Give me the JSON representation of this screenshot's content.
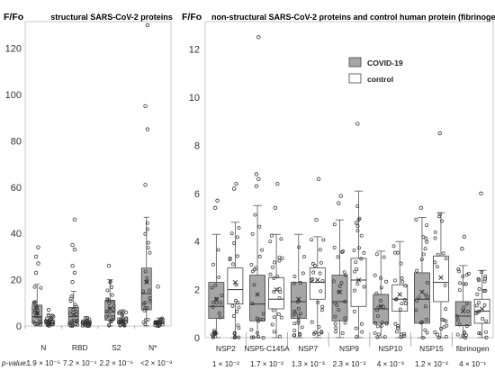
{
  "chart_data": [
    {
      "type": "box",
      "title": "structural SARS-CoV-2 proteins",
      "ylabel": "F/Fo",
      "ylim": [
        0,
        130
      ],
      "yticks": [
        0,
        20,
        40,
        60,
        80,
        100,
        120
      ],
      "p_value_label": "p-value:",
      "groups": [
        {
          "name": "N",
          "p_value": "1.9 × 10⁻⁵",
          "covid": {
            "whisker_low": 0,
            "q1": 1.5,
            "median": 4,
            "q3": 9,
            "whisker_high": 18,
            "mean": 5.5,
            "outliers": [
              23,
              27,
              30,
              34
            ]
          },
          "control": {
            "whisker_low": 0,
            "q1": 0.8,
            "median": 1.5,
            "q3": 2.5,
            "whisker_high": 5,
            "mean": 1.8,
            "outliers": [
              7
            ]
          }
        },
        {
          "name": "RBD",
          "p_value": "7.2 × 10⁻⁴",
          "covid": {
            "whisker_low": 0,
            "q1": 1.5,
            "median": 4,
            "q3": 8,
            "whisker_high": 15,
            "mean": 5,
            "outliers": [
              19,
              23,
              26,
              33,
              35,
              46
            ]
          },
          "control": {
            "whisker_low": 0,
            "q1": 0.8,
            "median": 1.3,
            "q3": 2.2,
            "whisker_high": 4,
            "mean": 1.5,
            "outliers": []
          }
        },
        {
          "name": "S2",
          "p_value": "2.2 × 10⁻⁶",
          "covid": {
            "whisker_low": 0,
            "q1": 2.5,
            "median": 6,
            "q3": 11,
            "whisker_high": 20,
            "mean": 7.5,
            "outliers": [
              26
            ]
          },
          "control": {
            "whisker_low": 0,
            "q1": 1.2,
            "median": 2,
            "q3": 3.5,
            "whisker_high": 7,
            "mean": 2.4,
            "outliers": []
          }
        },
        {
          "name": "N*",
          "p_value": "<2 × 10⁻⁹",
          "covid": {
            "whisker_low": 0,
            "q1": 7,
            "median": 14,
            "q3": 25,
            "whisker_high": 47,
            "mean": 19,
            "outliers": [
              61,
              85,
              95,
              130
            ]
          },
          "control": {
            "whisker_low": 0,
            "q1": 1,
            "median": 1.5,
            "q3": 2.2,
            "whisker_high": 3.5,
            "mean": 1.7,
            "outliers": [
              17
            ]
          }
        }
      ]
    },
    {
      "type": "box",
      "title": "non-structural SARS-CoV-2 proteins and control  human protein (fibrinogen)",
      "ylabel": "F/Fo",
      "ylim": [
        0,
        13
      ],
      "yticks": [
        0,
        2,
        4,
        6,
        8,
        10,
        12
      ],
      "legend": [
        {
          "name": "COVID-19",
          "color": "#a6a6a6"
        },
        {
          "name": "control",
          "color": "#ffffff"
        }
      ],
      "groups": [
        {
          "name": "NSP2",
          "p_value": "1 × 10⁻²",
          "covid": {
            "whisker_low": 0,
            "q1": 0.8,
            "median": 1.3,
            "q3": 2.3,
            "whisker_high": 4.3,
            "mean": 1.6,
            "outliers": [
              5.4,
              5.7
            ]
          },
          "control": {
            "whisker_low": 0,
            "q1": 1.4,
            "median": 2,
            "q3": 2.9,
            "whisker_high": 4.8,
            "mean": 2.3,
            "outliers": [
              6.2,
              6.4
            ]
          }
        },
        {
          "name": "NSP5-C145A",
          "p_value": "1.7 × 10⁻²",
          "covid": {
            "whisker_low": 0,
            "q1": 0.7,
            "median": 1.4,
            "q3": 2.6,
            "whisker_high": 5.5,
            "mean": 1.8,
            "outliers": [
              6.3,
              6.6,
              6.8,
              12.5
            ]
          },
          "control": {
            "whisker_low": 0,
            "q1": 1.2,
            "median": 1.6,
            "q3": 2.5,
            "whisker_high": 4.3,
            "mean": 2.0,
            "outliers": [
              5.4,
              6.4
            ]
          }
        },
        {
          "name": "NSP7",
          "p_value": "1.3 × 10⁻³",
          "covid": {
            "whisker_low": 0,
            "q1": 0.8,
            "median": 1.5,
            "q3": 2.3,
            "whisker_high": 4.3,
            "mean": 1.6,
            "outliers": []
          },
          "control": {
            "whisker_low": 0,
            "q1": 1.6,
            "median": 2.3,
            "q3": 2.9,
            "whisker_high": 4.2,
            "mean": 2.4,
            "outliers": [
              4.9,
              6.6
            ]
          }
        },
        {
          "name": "NSP9",
          "p_value": "2.3 × 10⁻²",
          "covid": {
            "whisker_low": 0,
            "q1": 0.7,
            "median": 1.5,
            "q3": 2.6,
            "whisker_high": 4.9,
            "mean": 1.9,
            "outliers": [
              5.6,
              5.9
            ]
          },
          "control": {
            "whisker_low": 0,
            "q1": 1.3,
            "median": 2.4,
            "q3": 3.3,
            "whisker_high": 6.1,
            "mean": 2.4,
            "outliers": [
              8.9
            ]
          }
        },
        {
          "name": "NSP10",
          "p_value": "4 × 10⁻³",
          "covid": {
            "whisker_low": 0,
            "q1": 0.6,
            "median": 1.2,
            "q3": 1.8,
            "whisker_high": 3.6,
            "mean": 1.3,
            "outliers": []
          },
          "control": {
            "whisker_low": 0,
            "q1": 1.1,
            "median": 1.6,
            "q3": 2.2,
            "whisker_high": 4.0,
            "mean": 1.8,
            "outliers": []
          }
        },
        {
          "name": "NSP15",
          "p_value": "1.2 × 10⁻²",
          "covid": {
            "whisker_low": 0,
            "q1": 0.6,
            "median": 1.6,
            "q3": 2.7,
            "whisker_high": 5.0,
            "mean": 1.9,
            "outliers": [
              5.4
            ]
          },
          "control": {
            "whisker_low": 0,
            "q1": 1.5,
            "median": 2.3,
            "q3": 3.4,
            "whisker_high": 5.2,
            "mean": 2.5,
            "outliers": [
              8.5
            ]
          }
        },
        {
          "name": "fibrinogen",
          "p_value": "4 × 10⁻¹",
          "covid": {
            "whisker_low": 0,
            "q1": 0.5,
            "median": 0.9,
            "q3": 1.5,
            "whisker_high": 3.0,
            "mean": 1.1,
            "outliers": [
              3.7,
              4.2
            ]
          },
          "control": {
            "whisker_low": 0,
            "q1": 0.6,
            "median": 1.1,
            "q3": 1.6,
            "whisker_high": 2.8,
            "mean": 1.2,
            "outliers": [
              6.0
            ]
          }
        }
      ]
    }
  ]
}
